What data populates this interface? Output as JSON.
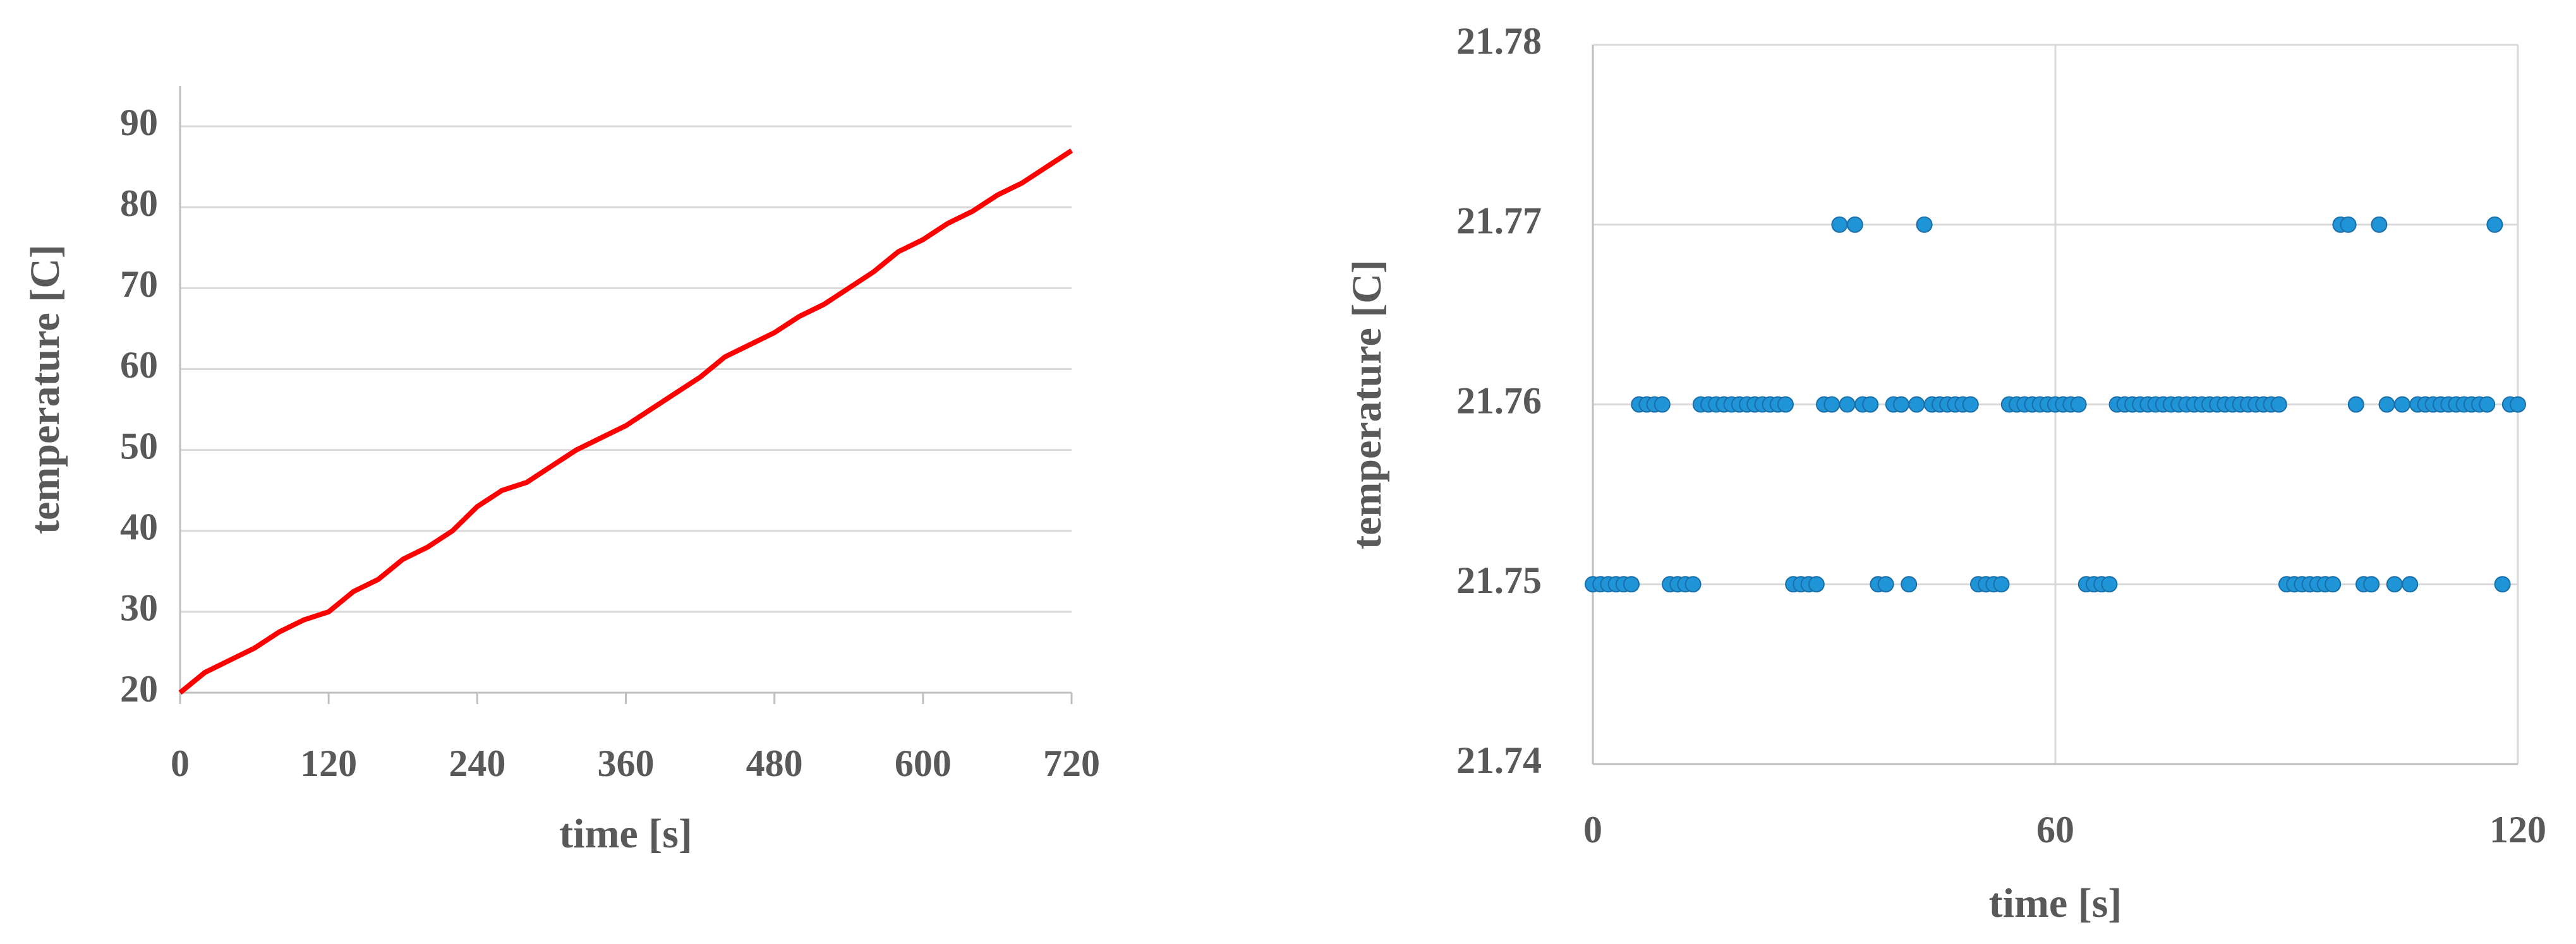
{
  "chart_data": [
    {
      "type": "line",
      "xlabel": "time [s]",
      "ylabel": "temperature [C]",
      "x": [
        0,
        20,
        40,
        60,
        80,
        100,
        120,
        140,
        160,
        180,
        200,
        220,
        240,
        260,
        280,
        300,
        320,
        340,
        360,
        380,
        400,
        420,
        440,
        460,
        480,
        500,
        520,
        540,
        560,
        580,
        600,
        620,
        640,
        660,
        680,
        700,
        720
      ],
      "values": [
        20,
        22.5,
        24,
        25.5,
        27.5,
        29,
        30,
        32.5,
        34,
        36.5,
        38,
        40,
        43,
        45,
        46,
        48,
        50,
        51.5,
        53,
        55,
        57,
        59,
        61.5,
        63,
        64.5,
        66.5,
        68,
        70,
        72,
        74.5,
        76,
        78,
        79.5,
        81.5,
        83,
        85,
        87
      ],
      "color": "#ff0000",
      "xlim": [
        0,
        720
      ],
      "ylim": [
        20,
        95
      ],
      "xticks": [
        0,
        120,
        240,
        360,
        480,
        600,
        720
      ],
      "yticks": [
        20,
        30,
        40,
        50,
        60,
        70,
        80,
        90
      ],
      "grid": "y"
    },
    {
      "type": "scatter",
      "xlabel": "time [s]",
      "ylabel": "temperature [C]",
      "x": [
        0,
        1,
        2,
        3,
        4,
        5,
        6,
        7,
        8,
        9,
        10,
        11,
        12,
        13,
        14,
        15,
        16,
        17,
        18,
        19,
        20,
        21,
        22,
        23,
        24,
        25,
        26,
        27,
        28,
        29,
        30,
        31,
        32,
        33,
        34,
        35,
        36,
        37,
        38,
        39,
        40,
        41,
        42,
        43,
        44,
        45,
        46,
        47,
        48,
        49,
        50,
        51,
        52,
        53,
        54,
        55,
        56,
        57,
        58,
        59,
        60,
        61,
        62,
        63,
        64,
        65,
        66,
        67,
        68,
        69,
        70,
        71,
        72,
        73,
        74,
        75,
        76,
        77,
        78,
        79,
        80,
        81,
        82,
        83,
        84,
        85,
        86,
        87,
        88,
        89,
        90,
        91,
        92,
        93,
        94,
        95,
        96,
        97,
        98,
        99,
        100,
        101,
        102,
        103,
        104,
        105,
        106,
        107,
        108,
        109,
        110,
        111,
        112,
        113,
        114,
        115,
        116,
        117,
        118,
        119,
        120
      ],
      "values": [
        21.75,
        21.75,
        21.75,
        21.75,
        21.75,
        21.75,
        21.76,
        21.76,
        21.76,
        21.76,
        21.75,
        21.75,
        21.75,
        21.75,
        21.76,
        21.76,
        21.76,
        21.76,
        21.76,
        21.76,
        21.76,
        21.76,
        21.76,
        21.76,
        21.76,
        21.76,
        21.75,
        21.75,
        21.75,
        21.75,
        21.76,
        21.76,
        21.77,
        21.76,
        21.77,
        21.76,
        21.76,
        21.75,
        21.75,
        21.76,
        21.76,
        21.75,
        21.76,
        21.77,
        21.76,
        21.76,
        21.76,
        21.76,
        21.76,
        21.76,
        21.75,
        21.75,
        21.75,
        21.75,
        21.76,
        21.76,
        21.76,
        21.76,
        21.76,
        21.76,
        21.76,
        21.76,
        21.76,
        21.76,
        21.75,
        21.75,
        21.75,
        21.75,
        21.76,
        21.76,
        21.76,
        21.76,
        21.76,
        21.76,
        21.76,
        21.76,
        21.76,
        21.76,
        21.76,
        21.76,
        21.76,
        21.76,
        21.76,
        21.76,
        21.76,
        21.76,
        21.76,
        21.76,
        21.76,
        21.76,
        21.75,
        21.75,
        21.75,
        21.75,
        21.75,
        21.75,
        21.75,
        21.77,
        21.77,
        21.76,
        21.75,
        21.75,
        21.77,
        21.76,
        21.75,
        21.76,
        21.75,
        21.76,
        21.76,
        21.76,
        21.76,
        21.76,
        21.76,
        21.76,
        21.76,
        21.76,
        21.76,
        21.77,
        21.75,
        21.76,
        21.76
      ],
      "color": "#1f94d6",
      "xlim": [
        0,
        120
      ],
      "ylim": [
        21.74,
        21.78
      ],
      "xticks": [
        0,
        60,
        120
      ],
      "yticks": [
        21.74,
        21.75,
        21.76,
        21.77,
        21.78
      ],
      "grid": "both"
    }
  ]
}
